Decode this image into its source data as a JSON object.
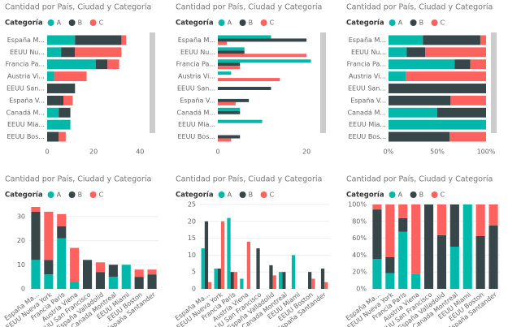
{
  "chart_data": [
    {
      "type": "bar",
      "orientation": "horizontal",
      "mode": "stacked",
      "title": "Cantidad por País, Ciudad y Categoría",
      "legend_title": "Categoría",
      "categories": [
        "España M...",
        "EEUU Nu...",
        "Francia Pa...",
        "Austria Vi...",
        "EEUU San...",
        "España V...",
        "Canadá M...",
        "EEUU Mia...",
        "EEUU Bos..."
      ],
      "series": [
        {
          "name": "A",
          "color": "#01B8AA",
          "values": [
            12,
            6,
            21,
            3,
            0,
            0,
            5,
            10,
            0
          ]
        },
        {
          "name": "B",
          "color": "#374649",
          "values": [
            20,
            6,
            5,
            0,
            12,
            7,
            5,
            0,
            5
          ]
        },
        {
          "name": "C",
          "color": "#FD625E",
          "values": [
            2,
            20,
            5,
            14,
            0,
            4,
            0,
            0,
            3
          ]
        }
      ],
      "xlim": [
        0,
        42
      ],
      "xticks": [
        0,
        20,
        40
      ],
      "grid": false
    },
    {
      "type": "bar",
      "orientation": "horizontal",
      "mode": "clustered",
      "title": "Cantidad por País, Ciudad y Categoría",
      "legend_title": "Categoría",
      "categories": [
        "España M...",
        "EEUU Nu...",
        "Francia Pa...",
        "Austria Vi...",
        "EEUU San...",
        "España V...",
        "Canadá M...",
        "EEUU Mia...",
        "EEUU Bos..."
      ],
      "series": [
        {
          "name": "A",
          "color": "#01B8AA",
          "values": [
            12,
            6,
            21,
            3,
            0,
            0,
            5,
            10,
            0
          ]
        },
        {
          "name": "B",
          "color": "#374649",
          "values": [
            20,
            6,
            5,
            0,
            12,
            7,
            5,
            0,
            5
          ]
        },
        {
          "name": "C",
          "color": "#FD625E",
          "values": [
            2,
            20,
            5,
            14,
            0,
            4,
            0,
            0,
            3
          ]
        }
      ],
      "xlim": [
        0,
        22
      ],
      "xticks": [
        0,
        20
      ],
      "grid": false
    },
    {
      "type": "bar",
      "orientation": "horizontal",
      "mode": "percent",
      "title": "Cantidad por País, Ciudad y Categoría",
      "legend_title": "Categoría",
      "categories": [
        "España M...",
        "EEUU Nu...",
        "Francia Pa...",
        "Austria Vi...",
        "EEUU San...",
        "España V...",
        "Canadá M...",
        "EEUU Mia...",
        "EEUU Bos..."
      ],
      "series": [
        {
          "name": "A",
          "color": "#01B8AA",
          "values": [
            12,
            6,
            21,
            3,
            0,
            0,
            5,
            10,
            0
          ]
        },
        {
          "name": "B",
          "color": "#374649",
          "values": [
            20,
            6,
            5,
            0,
            12,
            7,
            5,
            0,
            5
          ]
        },
        {
          "name": "C",
          "color": "#FD625E",
          "values": [
            2,
            20,
            5,
            14,
            0,
            4,
            0,
            0,
            3
          ]
        }
      ],
      "xlim": [
        0,
        100
      ],
      "xticks": [
        {
          "value": 0,
          "label": "0%"
        },
        {
          "value": 50,
          "label": "50%"
        },
        {
          "value": 100,
          "label": "100%"
        }
      ],
      "grid": false
    },
    {
      "type": "bar",
      "orientation": "vertical",
      "mode": "stacked",
      "title": "Cantidad por País, Ciudad y Categoría",
      "legend_title": "Categoría",
      "categories": [
        "España Ma...",
        "EEUU Nueva York",
        "Francia Paris",
        "Austria Viena",
        "EEUU San Francisco",
        "España Valladolid",
        "Canada Montreal",
        "EEUU Miami",
        "EEUU Boston",
        "España Santander"
      ],
      "series": [
        {
          "name": "A",
          "color": "#01B8AA",
          "values": [
            12,
            6,
            21,
            3,
            0,
            0,
            5,
            10,
            0,
            0
          ]
        },
        {
          "name": "B",
          "color": "#374649",
          "values": [
            20,
            6,
            5,
            0,
            12,
            7,
            5,
            0,
            5,
            6
          ]
        },
        {
          "name": "C",
          "color": "#FD625E",
          "values": [
            2,
            20,
            5,
            14,
            0,
            4,
            0,
            0,
            3,
            2
          ]
        }
      ],
      "ylim": [
        0,
        35
      ],
      "yticks": [
        0,
        10,
        20,
        30
      ],
      "grid": true
    },
    {
      "type": "bar",
      "orientation": "vertical",
      "mode": "clustered",
      "title": "Cantidad por País, Ciudad y Categoría",
      "legend_title": "Categoría",
      "categories": [
        "España Ma...",
        "EEUU Nueva York",
        "Francia Paris",
        "Austria Viena",
        "EEUU San Francisco",
        "España Valladolid",
        "Canada Montreal",
        "EEUU Miami",
        "EEUU Boston",
        "España Santander"
      ],
      "series": [
        {
          "name": "A",
          "color": "#01B8AA",
          "values": [
            12,
            6,
            21,
            3,
            0,
            0,
            5,
            10,
            0,
            0
          ]
        },
        {
          "name": "B",
          "color": "#374649",
          "values": [
            20,
            6,
            5,
            0,
            12,
            7,
            5,
            0,
            5,
            6
          ]
        },
        {
          "name": "C",
          "color": "#FD625E",
          "values": [
            2,
            20,
            5,
            14,
            0,
            4,
            0,
            0,
            3,
            2
          ]
        }
      ],
      "ylim": [
        0,
        25
      ],
      "yticks": [
        0,
        5,
        10,
        15,
        20,
        25
      ],
      "grid": true
    },
    {
      "type": "bar",
      "orientation": "vertical",
      "mode": "percent",
      "title": "Cantidad por País, Ciudad y Categoría",
      "legend_title": "Categoría",
      "categories": [
        "España Ma...",
        "EEUU Nueva York",
        "Francia Paris",
        "Austria Viena",
        "EEUU San Francisco",
        "España Valladolid",
        "Canada Montreal",
        "EEUU Miami",
        "EEUU Boston",
        "España Santander"
      ],
      "series": [
        {
          "name": "A",
          "color": "#01B8AA",
          "values": [
            12,
            6,
            21,
            3,
            0,
            0,
            5,
            10,
            0,
            0
          ]
        },
        {
          "name": "B",
          "color": "#374649",
          "values": [
            20,
            6,
            5,
            0,
            12,
            7,
            5,
            0,
            5,
            6
          ]
        },
        {
          "name": "C",
          "color": "#FD625E",
          "values": [
            2,
            20,
            5,
            14,
            0,
            4,
            0,
            0,
            3,
            2
          ]
        }
      ],
      "ylim": [
        0,
        100
      ],
      "yticks": [
        {
          "value": 0,
          "label": "0%"
        },
        {
          "value": 20,
          "label": "20%"
        },
        {
          "value": 40,
          "label": "40%"
        },
        {
          "value": 60,
          "label": "60%"
        },
        {
          "value": 80,
          "label": "80%"
        },
        {
          "value": 100,
          "label": "100%"
        }
      ],
      "grid": true
    }
  ]
}
